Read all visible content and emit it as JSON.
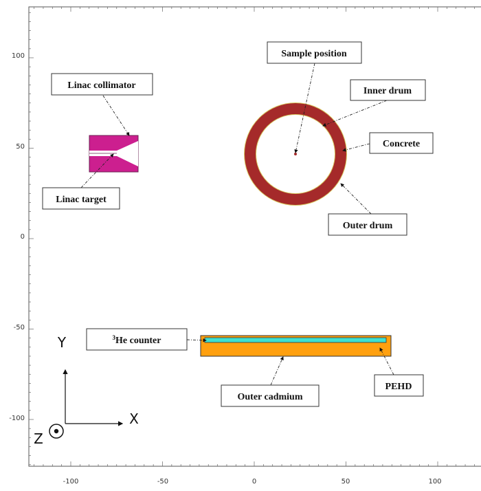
{
  "axes": {
    "x_ticks": [
      "-100",
      "-50",
      "0",
      "50",
      "100"
    ],
    "y_ticks": [
      "100",
      "50",
      "0",
      "-50",
      "-100"
    ]
  },
  "labels": {
    "sample_position": "Sample position",
    "inner_drum": "Inner drum",
    "concrete": "Concrete",
    "outer_drum": "Outer drum",
    "linac_collimator": "Linac collimator",
    "linac_target": "Linac target",
    "he_counter_sup": "3",
    "he_counter": "He counter",
    "outer_cadmium": "Outer cadmium",
    "pehd": "PEHD"
  },
  "coordinate_system": {
    "x_axis": "X",
    "y_axis": "Y",
    "z_axis": "Z"
  },
  "colors": {
    "drum_concrete": "#a52a2a",
    "collimator": "#cc1f8f",
    "outer_cadmium": "#ffa00f",
    "he_counter": "#3fe0d0"
  }
}
